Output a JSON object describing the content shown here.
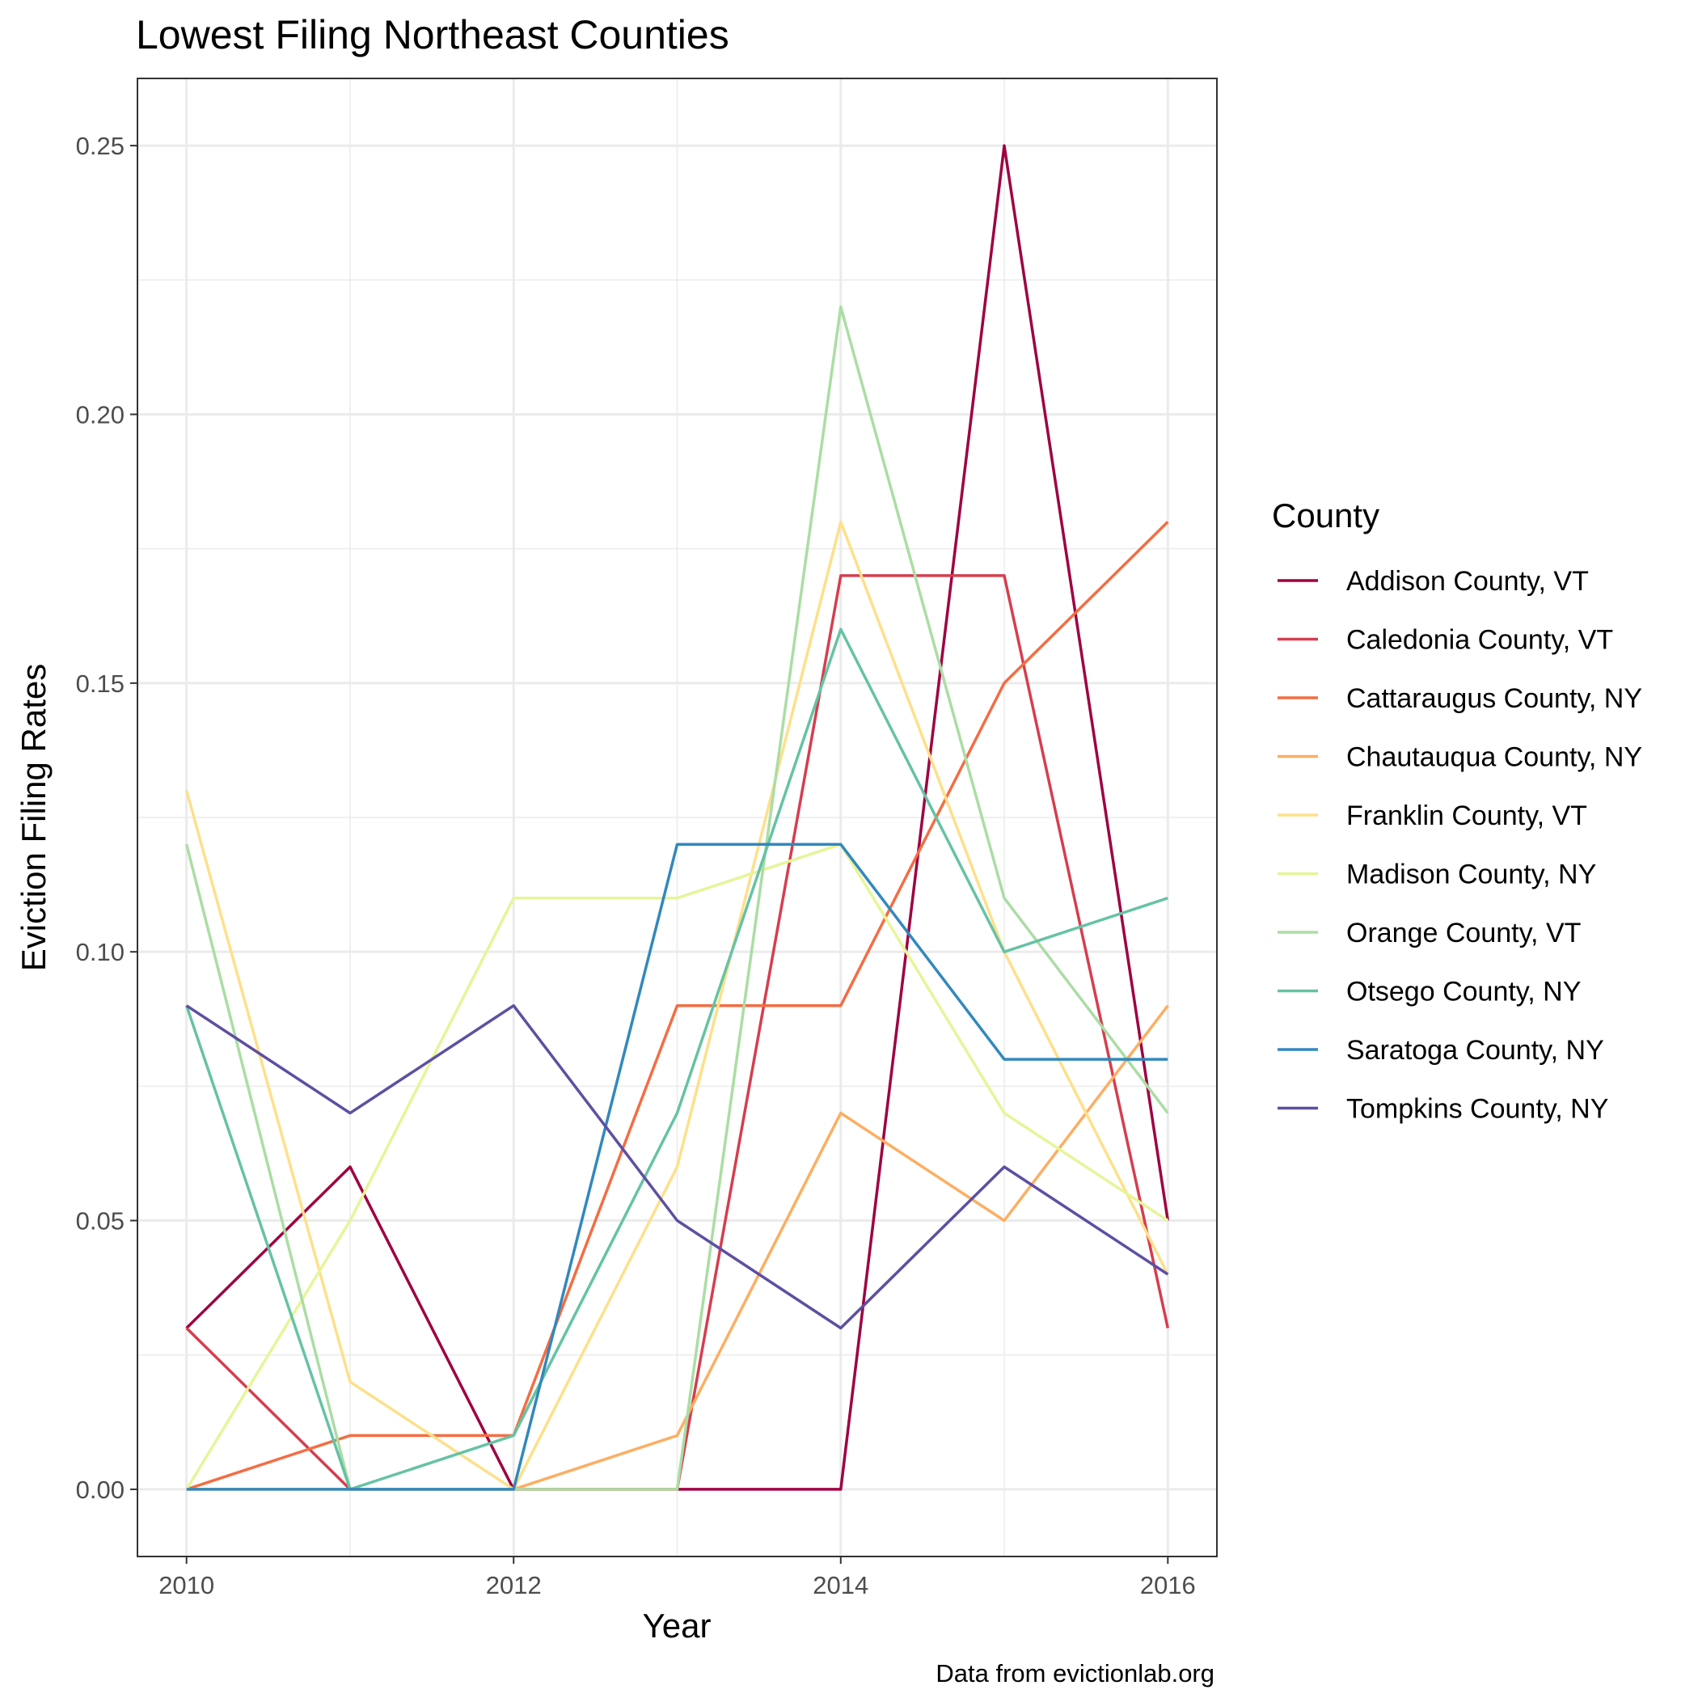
{
  "chart_data": {
    "type": "line",
    "title": "Lowest Filing Northeast Counties",
    "xlabel": "Year",
    "ylabel": "Eviction Filing Rates",
    "caption": "Data from evictionlab.org",
    "legend_title": "County",
    "legend_placement": "right",
    "grid": true,
    "xlim": [
      2009.7,
      2016.3
    ],
    "ylim": [
      -0.0125,
      0.2625
    ],
    "x_ticks": [
      2010,
      2012,
      2014,
      2016
    ],
    "x_tick_labels": [
      "2010",
      "2012",
      "2014",
      "2016"
    ],
    "y_ticks": [
      0.0,
      0.05,
      0.1,
      0.15,
      0.2,
      0.25
    ],
    "y_tick_labels": [
      "0.00",
      "0.05",
      "0.10",
      "0.15",
      "0.20",
      "0.25"
    ],
    "x": [
      2010,
      2011,
      2012,
      2013,
      2014,
      2015,
      2016
    ],
    "series": [
      {
        "name": "Addison County, VT",
        "color": "#9E0142",
        "values": [
          0.03,
          0.06,
          0.0,
          0.0,
          0.0,
          0.25,
          0.05
        ]
      },
      {
        "name": "Caledonia County, VT",
        "color": "#D53E4F",
        "values": [
          0.03,
          0.0,
          0.0,
          0.0,
          0.17,
          0.17,
          0.03
        ]
      },
      {
        "name": "Cattaraugus County, NY",
        "color": "#F46D43",
        "values": [
          0.0,
          0.01,
          0.01,
          0.09,
          0.09,
          0.15,
          0.18
        ]
      },
      {
        "name": "Chautauqua County, NY",
        "color": "#FDAE61",
        "values": [
          0.0,
          0.0,
          0.0,
          0.01,
          0.07,
          0.05,
          0.09
        ]
      },
      {
        "name": "Franklin County, VT",
        "color": "#FEE08B",
        "values": [
          0.13,
          0.02,
          0.0,
          0.06,
          0.18,
          0.1,
          0.04
        ]
      },
      {
        "name": "Madison County, NY",
        "color": "#E6F598",
        "values": [
          0.0,
          0.05,
          0.11,
          0.11,
          0.12,
          0.07,
          0.05
        ]
      },
      {
        "name": "Orange County, VT",
        "color": "#ABDDA4",
        "values": [
          0.12,
          0.0,
          0.0,
          0.0,
          0.22,
          0.11,
          0.07
        ]
      },
      {
        "name": "Otsego County, NY",
        "color": "#66C2A5",
        "values": [
          0.09,
          0.0,
          0.01,
          0.07,
          0.16,
          0.1,
          0.11
        ]
      },
      {
        "name": "Saratoga County, NY",
        "color": "#3288BD",
        "values": [
          0.0,
          0.0,
          0.0,
          0.12,
          0.12,
          0.08,
          0.08
        ]
      },
      {
        "name": "Tompkins County, NY",
        "color": "#5E4FA2",
        "values": [
          0.09,
          0.07,
          0.09,
          0.05,
          0.03,
          0.06,
          0.04
        ]
      }
    ]
  }
}
